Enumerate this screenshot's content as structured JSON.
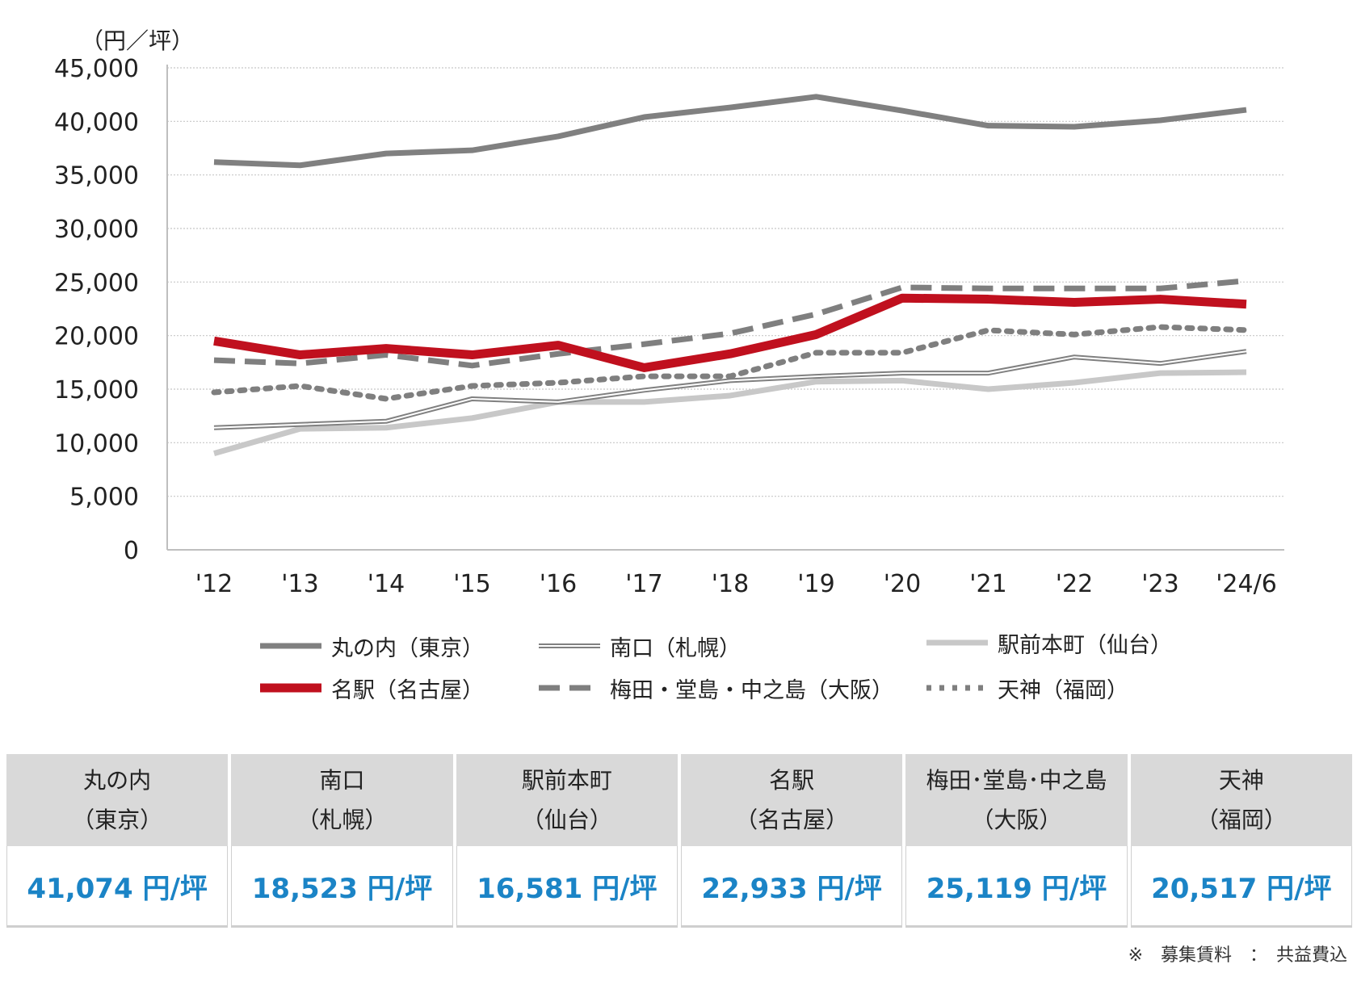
{
  "chart_data": {
    "type": "line",
    "unit_label": "（円／坪）",
    "categories": [
      "'12",
      "'13",
      "'14",
      "'15",
      "'16",
      "'17",
      "'18",
      "'19",
      "'20",
      "'21",
      "'22",
      "'23",
      "'24/6"
    ],
    "ylim": [
      0,
      45000
    ],
    "yticks": [
      0,
      5000,
      10000,
      15000,
      20000,
      25000,
      30000,
      35000,
      40000,
      45000
    ],
    "ytick_labels": [
      "0",
      "5,000",
      "10,000",
      "15,000",
      "20,000",
      "25,000",
      "30,000",
      "35,000",
      "40,000",
      "45,000"
    ],
    "grid": true,
    "legend_position": "bottom",
    "series": [
      {
        "name": "丸の内（東京）",
        "color": "#808080",
        "style": "solid-thick",
        "values": [
          36200,
          35900,
          37000,
          37300,
          38600,
          40400,
          41300,
          42300,
          41000,
          39600,
          39500,
          40100,
          41074
        ]
      },
      {
        "name": "南口（札幌）",
        "color": "#808080",
        "style": "double",
        "values": [
          11400,
          11700,
          12000,
          14100,
          13800,
          14900,
          15800,
          16200,
          16500,
          16500,
          18000,
          17400,
          18523
        ]
      },
      {
        "name": "駅前本町（仙台）",
        "color": "#c8c8c8",
        "style": "solid-light",
        "values": [
          9000,
          11300,
          11400,
          12300,
          13800,
          13800,
          14400,
          15700,
          15800,
          15000,
          15600,
          16500,
          16581
        ]
      },
      {
        "name": "名駅（名古屋）",
        "color": "#c0101e",
        "style": "solid-bold",
        "values": [
          19500,
          18200,
          18800,
          18200,
          19100,
          17000,
          18300,
          20100,
          23500,
          23400,
          23100,
          23400,
          22933
        ]
      },
      {
        "name": "梅田・堂島・中之島（大阪）",
        "color": "#7f7f7f",
        "style": "dashed",
        "values": [
          17700,
          17400,
          18200,
          17200,
          18300,
          19200,
          20200,
          22000,
          24500,
          24400,
          24400,
          24400,
          25119
        ]
      },
      {
        "name": "天神（福岡）",
        "color": "#7f7f7f",
        "style": "dotted",
        "values": [
          14700,
          15300,
          14100,
          15300,
          15600,
          16200,
          16200,
          18400,
          18400,
          20500,
          20100,
          20800,
          20517
        ]
      }
    ]
  },
  "table": {
    "columns": [
      {
        "name": "丸の内",
        "sub": "（東京）",
        "value": "41,074 円/坪"
      },
      {
        "name": "南口",
        "sub": "（札幌）",
        "value": "18,523 円/坪"
      },
      {
        "name": "駅前本町",
        "sub": "（仙台）",
        "value": "16,581 円/坪"
      },
      {
        "name": "名駅",
        "sub": "（名古屋）",
        "value": "22,933 円/坪"
      },
      {
        "name": "梅田･堂島･中之島",
        "sub": "（大阪）",
        "value": "25,119 円/坪"
      },
      {
        "name": "天神",
        "sub": "（福岡）",
        "value": "20,517 円/坪"
      }
    ]
  },
  "footnote": "※　募集賃料　：　共益費込"
}
